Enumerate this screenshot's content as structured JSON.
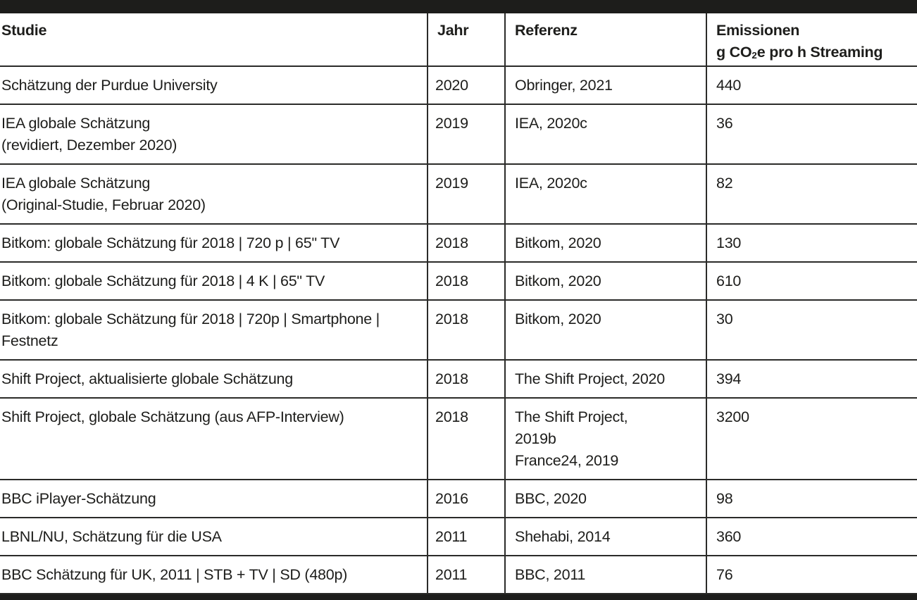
{
  "colors": {
    "bar": "#1d1d1b",
    "grid_line": "#2b2b29",
    "text": "#1d1d1b",
    "background": "#ffffff"
  },
  "table": {
    "header": {
      "studie": "Studie",
      "jahr": "Jahr",
      "referenz": "Referenz",
      "emissionen_line1": "Emissionen",
      "emissionen_line2_pre": "g CO",
      "emissionen_sub": "2",
      "emissionen_line2_post": "e pro h Streaming"
    },
    "rows": [
      {
        "studie": "Schätzung der Purdue University",
        "jahr": "2020",
        "referenz": "Obringer, 2021",
        "emission": "440"
      },
      {
        "studie": "IEA globale Schätzung\n(revidiert, Dezember 2020)",
        "jahr": "2019",
        "referenz": "IEA, 2020c",
        "emission": "36"
      },
      {
        "studie": "IEA globale Schätzung\n(Original-Studie, Februar 2020)",
        "jahr": "2019",
        "referenz": "IEA, 2020c",
        "emission": "82"
      },
      {
        "studie": "Bitkom: globale Schätzung für 2018 | 720 p | 65\" TV",
        "jahr": "2018",
        "referenz": "Bitkom, 2020",
        "emission": "130"
      },
      {
        "studie": "Bitkom: globale Schätzung für 2018 | 4 K | 65\" TV",
        "jahr": "2018",
        "referenz": "Bitkom, 2020",
        "emission": "610"
      },
      {
        "studie": "Bitkom: globale Schätzung für 2018 | 720p | Smartphone |\nFestnetz",
        "jahr": "2018",
        "referenz": "Bitkom, 2020",
        "emission": "30"
      },
      {
        "studie": "Shift Project, aktualisierte globale Schätzung",
        "jahr": "2018",
        "referenz": "The Shift Project, 2020",
        "emission": "394"
      },
      {
        "studie": "Shift Project, globale Schätzung (aus AFP-Interview)",
        "jahr": "2018",
        "referenz": "The Shift Project,\n2019b\nFrance24, 2019",
        "emission": "3200"
      },
      {
        "studie": "BBC iPlayer-Schätzung",
        "jahr": "2016",
        "referenz": "BBC, 2020",
        "emission": "98"
      },
      {
        "studie": "LBNL/NU, Schätzung für die USA",
        "jahr": "2011",
        "referenz": "Shehabi, 2014",
        "emission": "360"
      },
      {
        "studie": "BBC Schätzung für UK, 2011 | STB + TV | SD (480p)",
        "jahr": "2011",
        "referenz": "BBC, 2011",
        "emission": "76"
      }
    ]
  }
}
